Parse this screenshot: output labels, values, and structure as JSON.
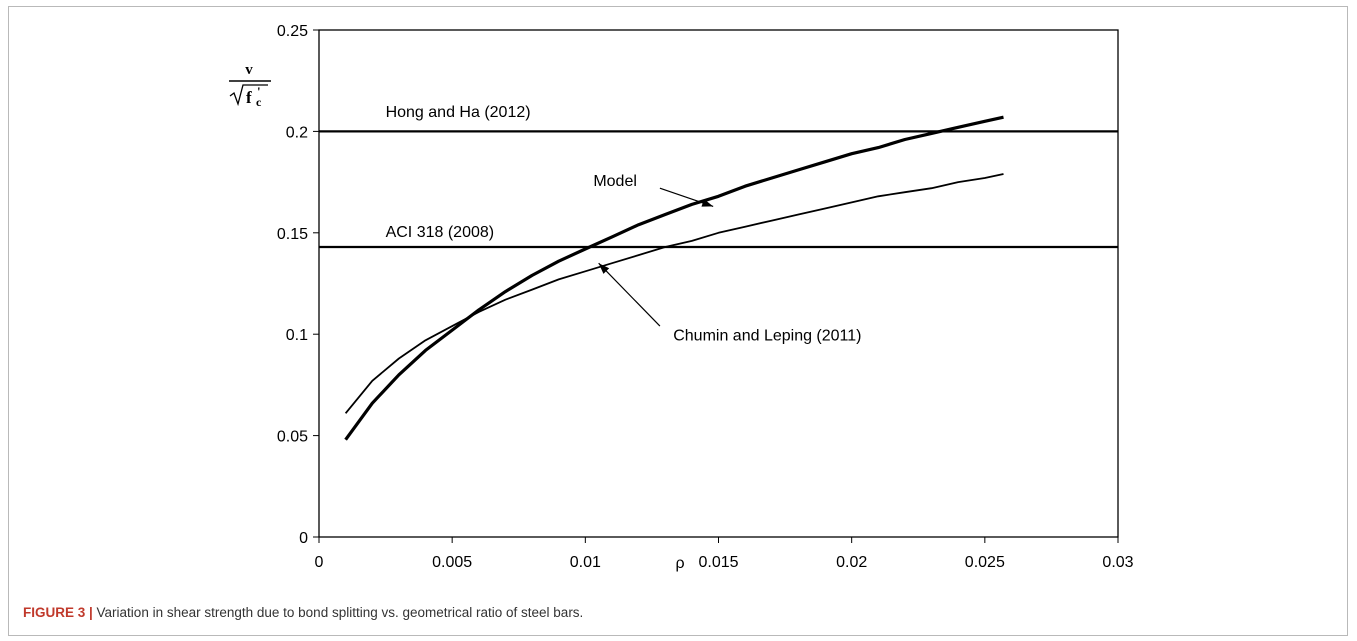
{
  "chart_data": {
    "type": "line",
    "title": "",
    "xlabel": "ρ",
    "ylabel_symbol": "v",
    "ylabel_radicand": "f",
    "ylabel_subscript": "c",
    "ylabel_prime": "'",
    "xlim": [
      0,
      0.03
    ],
    "ylim": [
      0,
      0.25
    ],
    "x_ticks": [
      "0",
      "0.005",
      "0.01",
      "0.015",
      "0.02",
      "0.025",
      "0.03"
    ],
    "y_ticks": [
      "0",
      "0.05",
      "0.1",
      "0.15",
      "0.2",
      "0.25"
    ],
    "grid": false,
    "legend": "none",
    "series": [
      {
        "name": "Model",
        "style": "thick",
        "x": [
          0.001,
          0.002,
          0.003,
          0.004,
          0.005,
          0.006,
          0.007,
          0.008,
          0.009,
          0.01,
          0.011,
          0.012,
          0.013,
          0.014,
          0.015,
          0.016,
          0.017,
          0.018,
          0.019,
          0.02,
          0.021,
          0.022,
          0.023,
          0.024,
          0.025,
          0.0257
        ],
        "y": [
          0.048,
          0.066,
          0.08,
          0.092,
          0.102,
          0.112,
          0.121,
          0.129,
          0.136,
          0.142,
          0.148,
          0.154,
          0.159,
          0.164,
          0.168,
          0.173,
          0.177,
          0.181,
          0.185,
          0.189,
          0.192,
          0.196,
          0.199,
          0.202,
          0.205,
          0.207
        ]
      },
      {
        "name": "Chumin and Leping (2011)",
        "style": "thin",
        "x": [
          0.001,
          0.002,
          0.003,
          0.004,
          0.005,
          0.006,
          0.007,
          0.008,
          0.009,
          0.01,
          0.011,
          0.012,
          0.013,
          0.014,
          0.015,
          0.016,
          0.017,
          0.018,
          0.019,
          0.02,
          0.021,
          0.022,
          0.023,
          0.024,
          0.025,
          0.0257
        ],
        "y": [
          0.061,
          0.077,
          0.088,
          0.097,
          0.104,
          0.111,
          0.117,
          0.122,
          0.127,
          0.131,
          0.135,
          0.139,
          0.143,
          0.146,
          0.15,
          0.153,
          0.156,
          0.159,
          0.162,
          0.165,
          0.168,
          0.17,
          0.172,
          0.175,
          0.177,
          0.179
        ]
      },
      {
        "name": "Hong and Ha (2012)",
        "style": "horizontal",
        "x": [
          0,
          0.03
        ],
        "y": [
          0.2,
          0.2
        ]
      },
      {
        "name": "ACI 318 (2008)",
        "style": "horizontal",
        "x": [
          0,
          0.03
        ],
        "y": [
          0.143,
          0.143
        ]
      }
    ],
    "annotations": [
      {
        "text": "Hong and Ha (2012)",
        "at_x": 0.0025,
        "at_y": 0.207,
        "arrow": false
      },
      {
        "text": "ACI 318 (2008)",
        "at_x": 0.0025,
        "at_y": 0.148,
        "arrow": false
      },
      {
        "text": "Model",
        "at_x": 0.0103,
        "at_y": 0.173,
        "arrow": true,
        "arrow_from": [
          0.0128,
          0.172
        ],
        "arrow_to": [
          0.0148,
          0.163
        ]
      },
      {
        "text": "Chumin and Leping (2011)",
        "at_x": 0.0133,
        "at_y": 0.097,
        "arrow": true,
        "arrow_from": [
          0.0128,
          0.104
        ],
        "arrow_to": [
          0.0105,
          0.135
        ]
      }
    ]
  },
  "caption": {
    "label": "FIGURE 3 |",
    "text": " Variation in shear strength due to bond splitting vs. geometrical ratio of steel bars."
  }
}
